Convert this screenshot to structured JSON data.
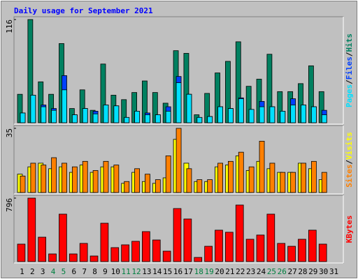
{
  "chart_data": [
    {
      "type": "bar",
      "title": "Daily usage for September 2021",
      "categories": [
        "1",
        "2",
        "3",
        "4",
        "5",
        "6",
        "7",
        "8",
        "9",
        "10",
        "11",
        "12",
        "13",
        "14",
        "15",
        "16",
        "17",
        "18",
        "19",
        "20",
        "21",
        "22",
        "23",
        "24",
        "25",
        "26",
        "27",
        "28",
        "29",
        "30",
        "31"
      ],
      "category_label_colors": [
        "#000000",
        "#000000",
        "#000000",
        "#008040",
        "#008040",
        "#000000",
        "#000000",
        "#000000",
        "#000000",
        "#000000",
        "#008040",
        "#008040",
        "#000000",
        "#000000",
        "#000000",
        "#000000",
        "#000000",
        "#008040",
        "#008040",
        "#000000",
        "#000000",
        "#000000",
        "#000000",
        "#000000",
        "#008040",
        "#008040",
        "#000000",
        "#000000",
        "#000000",
        "#000000",
        "#000000"
      ],
      "ylim": [
        0,
        116
      ],
      "yticks": [
        116
      ],
      "legend_separator": "/",
      "series": [
        {
          "name": "Hits",
          "color": "#008060",
          "values": [
            32,
            116,
            46,
            32,
            89,
            16,
            37,
            14,
            66,
            31,
            26,
            34,
            47,
            34,
            22,
            81,
            78,
            9,
            33,
            56,
            69,
            91,
            41,
            49,
            77,
            35,
            35,
            44,
            64,
            35,
            0
          ]
        },
        {
          "name": "Files",
          "color": "#0040ff",
          "values": [
            11,
            31,
            20,
            16,
            53,
            9,
            16,
            13,
            20,
            19,
            6,
            13,
            11,
            9,
            18,
            52,
            32,
            6,
            7,
            18,
            16,
            28,
            15,
            24,
            18,
            13,
            27,
            20,
            18,
            14,
            0
          ]
        },
        {
          "name": "Pages",
          "color": "#00e0ff",
          "values": [
            11,
            31,
            18,
            14,
            37,
            9,
            16,
            10,
            20,
            19,
            6,
            13,
            9,
            9,
            13,
            45,
            32,
            6,
            7,
            18,
            16,
            27,
            15,
            18,
            18,
            13,
            20,
            20,
            18,
            9,
            0
          ]
        }
      ]
    },
    {
      "type": "bar",
      "ylim": [
        0,
        35
      ],
      "yticks": [
        35
      ],
      "legend_separator": "/",
      "series": [
        {
          "name": "Visits",
          "color": "#ffff00",
          "values": [
            10,
            14,
            16,
            13,
            14,
            11,
            15,
            11,
            14,
            14,
            5,
            11,
            6,
            5,
            8,
            29,
            16,
            6,
            6,
            14,
            15,
            20,
            12,
            17,
            13,
            11,
            11,
            16,
            13,
            7,
            0
          ]
        },
        {
          "name": "Sites",
          "color": "#ff8000",
          "values": [
            9,
            16,
            15,
            19,
            16,
            14,
            17,
            12,
            17,
            15,
            6,
            13,
            10,
            7,
            20,
            35,
            13,
            7,
            7,
            16,
            17,
            22,
            14,
            28,
            16,
            11,
            11,
            16,
            17,
            11,
            0
          ]
        }
      ]
    },
    {
      "type": "bar",
      "ylim": [
        0,
        796
      ],
      "yticks": [
        796
      ],
      "series": [
        {
          "name": "KBytes",
          "color": "#ff0000",
          "values": [
            219,
            796,
            306,
            96,
            595,
            96,
            228,
            70,
            481,
            175,
            210,
            254,
            376,
            271,
            131,
            665,
            534,
            52,
            192,
            394,
            368,
            709,
            280,
            333,
            595,
            228,
            192,
            280,
            394,
            219,
            0
          ]
        }
      ]
    }
  ]
}
